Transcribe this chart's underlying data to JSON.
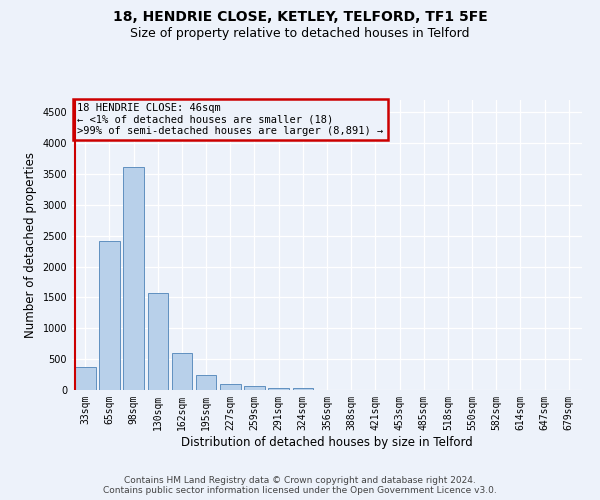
{
  "title": "18, HENDRIE CLOSE, KETLEY, TELFORD, TF1 5FE",
  "subtitle": "Size of property relative to detached houses in Telford",
  "xlabel": "Distribution of detached houses by size in Telford",
  "ylabel": "Number of detached properties",
  "categories": [
    "33sqm",
    "65sqm",
    "98sqm",
    "130sqm",
    "162sqm",
    "195sqm",
    "227sqm",
    "259sqm",
    "291sqm",
    "324sqm",
    "356sqm",
    "388sqm",
    "421sqm",
    "453sqm",
    "485sqm",
    "518sqm",
    "550sqm",
    "582sqm",
    "614sqm",
    "647sqm",
    "679sqm"
  ],
  "values": [
    370,
    2420,
    3610,
    1580,
    600,
    240,
    100,
    60,
    40,
    40,
    0,
    0,
    0,
    0,
    0,
    0,
    0,
    0,
    0,
    0,
    0
  ],
  "bar_color": "#b8d0ea",
  "bar_edge_color": "#6090c0",
  "annotation_box_color": "#cc0000",
  "annotation_text_line1": "18 HENDRIE CLOSE: 46sqm",
  "annotation_text_line2": "← <1% of detached houses are smaller (18)",
  "annotation_text_line3": ">99% of semi-detached houses are larger (8,891) →",
  "red_line_x": -0.43,
  "ylim_max": 4700,
  "yticks": [
    0,
    500,
    1000,
    1500,
    2000,
    2500,
    3000,
    3500,
    4000,
    4500
  ],
  "bg_color": "#edf2fa",
  "grid_color": "#ffffff",
  "title_fontsize": 10,
  "subtitle_fontsize": 9,
  "ylabel_fontsize": 8.5,
  "xlabel_fontsize": 8.5,
  "tick_fontsize": 7,
  "ann_fontsize": 7.5,
  "footer_fontsize": 6.5,
  "footer_line1": "Contains HM Land Registry data © Crown copyright and database right 2024.",
  "footer_line2": "Contains public sector information licensed under the Open Government Licence v3.0."
}
